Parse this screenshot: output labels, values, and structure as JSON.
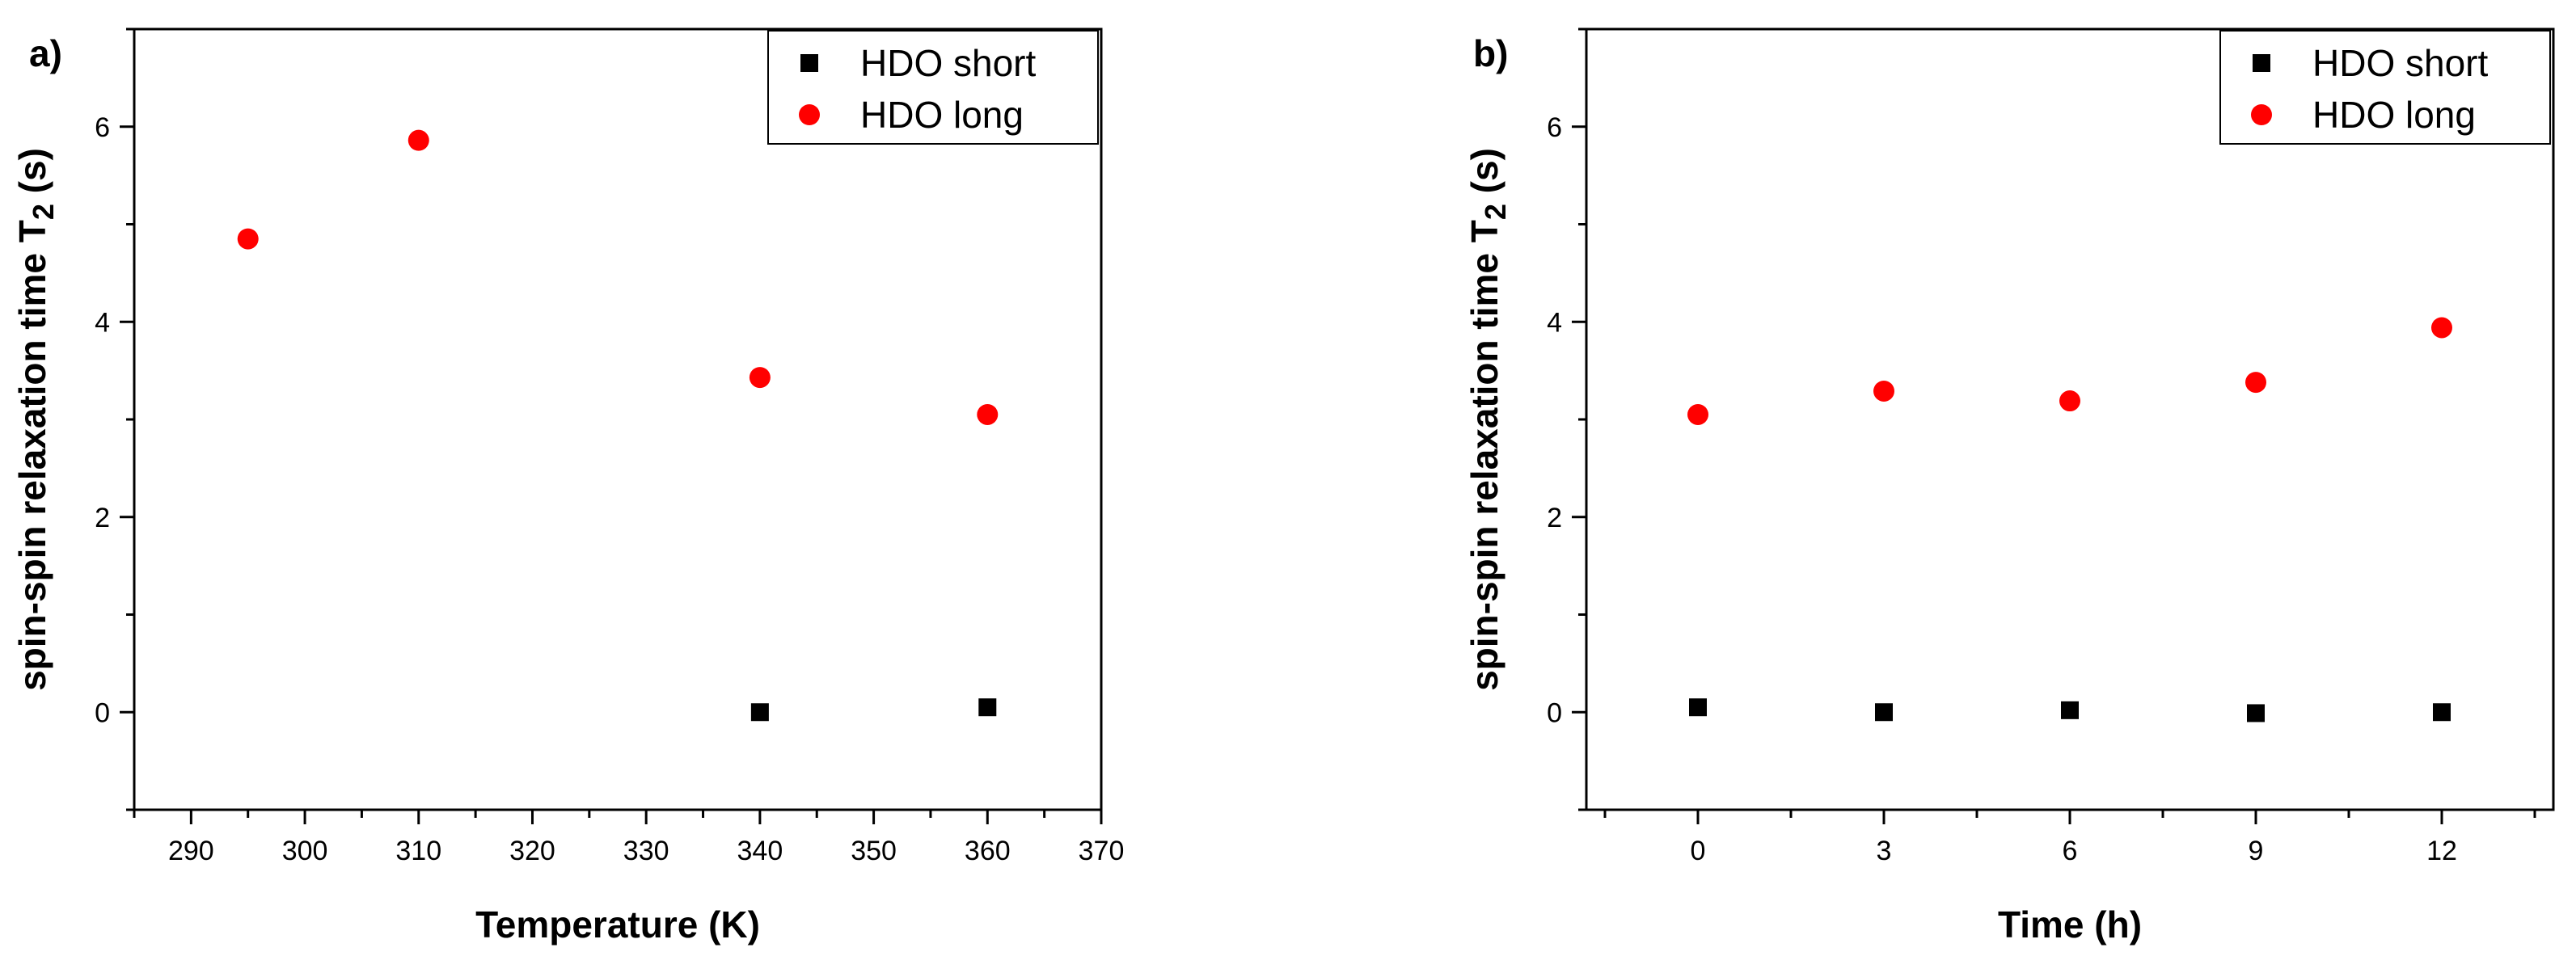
{
  "colors": {
    "short": "#000000",
    "long": "#ff0000"
  },
  "chart_data": [
    {
      "type": "scatter",
      "panel_label": "a)",
      "xlabel": "Temperature (K)",
      "ylabel": "spin-spin relaxation time T",
      "ylabel_subscript": "2",
      "ylabel_unit": " (s)",
      "xlim": [
        285,
        370
      ],
      "ylim": [
        -1,
        7
      ],
      "x_ticks": [
        290,
        300,
        310,
        320,
        330,
        340,
        350,
        360,
        370
      ],
      "y_ticks": [
        0,
        2,
        4,
        6
      ],
      "legend": "top-right",
      "grid": false,
      "series": [
        {
          "name": "HDO short",
          "marker": "square",
          "color": "#000000",
          "x": [
            340,
            360
          ],
          "y": [
            0.0,
            0.05
          ]
        },
        {
          "name": "HDO long",
          "marker": "circle",
          "color": "#ff0000",
          "x": [
            295,
            310,
            340,
            360
          ],
          "y": [
            4.85,
            5.86,
            3.43,
            3.05
          ]
        }
      ]
    },
    {
      "type": "scatter",
      "panel_label": "b)",
      "xlabel": "Time (h)",
      "ylabel": "spin-spin relaxation time T",
      "ylabel_subscript": "2",
      "ylabel_unit": " (s)",
      "xlim": [
        -1.8,
        13.8
      ],
      "ylim": [
        -1,
        7
      ],
      "x_ticks": [
        0,
        3,
        6,
        9,
        12
      ],
      "y_ticks": [
        0,
        2,
        4,
        6
      ],
      "legend": "top-right",
      "grid": false,
      "series": [
        {
          "name": "HDO short",
          "marker": "square",
          "color": "#000000",
          "x": [
            0,
            3,
            6,
            9,
            12
          ],
          "y": [
            0.05,
            0.0,
            0.02,
            -0.01,
            0.0
          ]
        },
        {
          "name": "HDO long",
          "marker": "circle",
          "color": "#ff0000",
          "x": [
            0,
            3,
            6,
            9,
            12
          ],
          "y": [
            3.05,
            3.29,
            3.19,
            3.38,
            3.94
          ]
        }
      ]
    }
  ]
}
